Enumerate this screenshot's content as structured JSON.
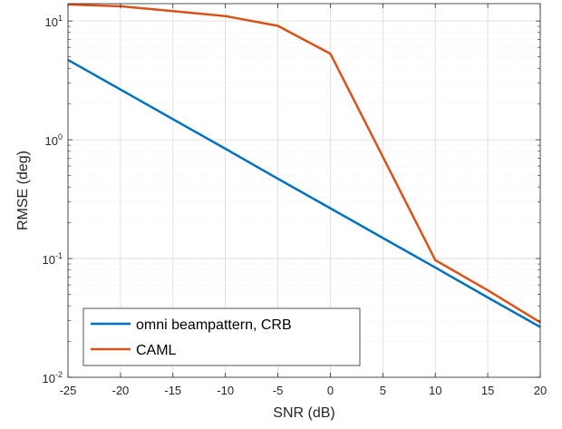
{
  "chart_data": {
    "type": "line",
    "title": "",
    "xlabel": "SNR (dB)",
    "ylabel": "RMSE (deg)",
    "xlim": [
      -25,
      20
    ],
    "ylim": [
      0.01,
      14
    ],
    "yscale": "log",
    "grid": true,
    "minor_grid": true,
    "legend_position": "bottom-left",
    "x_ticks": [
      -25,
      -20,
      -15,
      -10,
      -5,
      0,
      5,
      10,
      15,
      20
    ],
    "x_tick_labels": [
      "-25",
      "-20",
      "-15",
      "-10",
      "-5",
      "0",
      "5",
      "10",
      "15",
      "20"
    ],
    "y_ticks": [
      0.01,
      0.1,
      1,
      10
    ],
    "y_tick_labels": [
      {
        "base": "10",
        "exp": "-2"
      },
      {
        "base": "10",
        "exp": "-1"
      },
      {
        "base": "10",
        "exp": "0"
      },
      {
        "base": "10",
        "exp": "1"
      }
    ],
    "series": [
      {
        "name": "omni beampattern, CRB",
        "color": "#0072BD",
        "x": [
          -25,
          -20,
          -15,
          -10,
          -5,
          0,
          5,
          10,
          15,
          20
        ],
        "y": [
          4.7,
          2.65,
          1.49,
          0.84,
          0.47,
          0.265,
          0.149,
          0.084,
          0.047,
          0.0265
        ]
      },
      {
        "name": "CAML",
        "color": "#D95319",
        "x": [
          -25,
          -20,
          -15,
          -10,
          -5,
          0,
          5,
          10,
          15,
          20
        ],
        "y": [
          13.8,
          13.3,
          12.1,
          11.0,
          9.1,
          5.3,
          0.72,
          0.097,
          0.054,
          0.029
        ]
      }
    ]
  }
}
